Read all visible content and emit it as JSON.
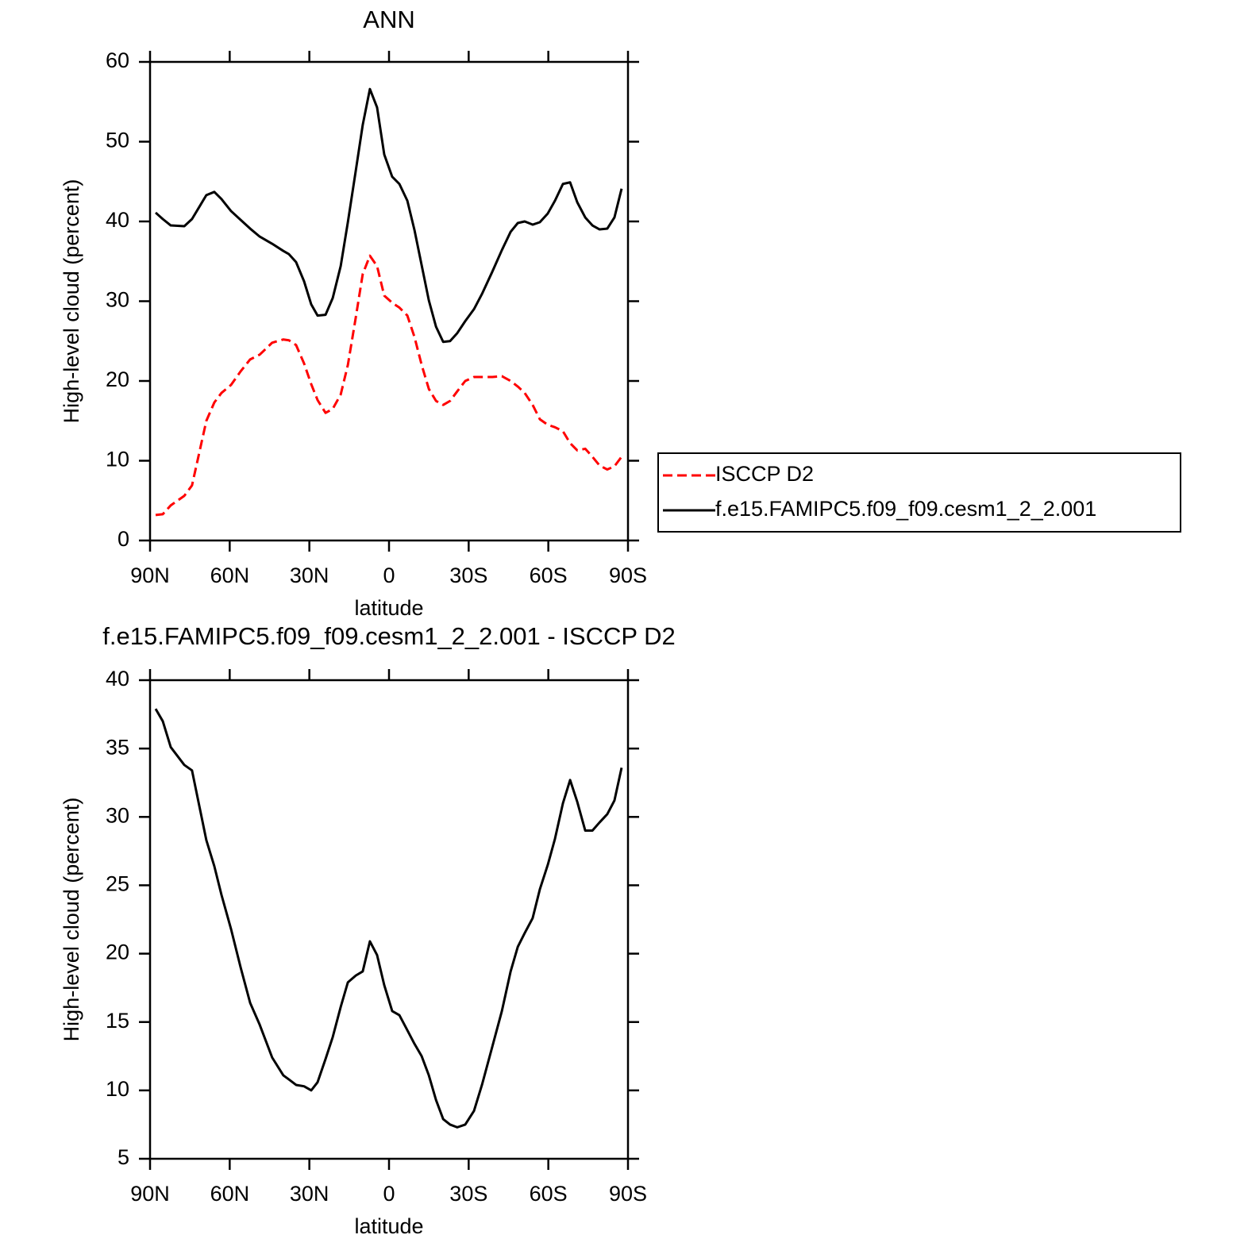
{
  "chart_data": [
    {
      "type": "line",
      "title": "ANN",
      "x_label": "latitude",
      "y_label": "High-level cloud (percent)",
      "xlim": [
        90,
        -90
      ],
      "ylim": [
        0,
        60
      ],
      "xticks": [
        {
          "value": 90,
          "label": "90N"
        },
        {
          "value": 60,
          "label": "60N"
        },
        {
          "value": 30,
          "label": "30N"
        },
        0,
        {
          "value": -30,
          "label": "30S"
        },
        {
          "value": -60,
          "label": "60S"
        },
        {
          "value": -90,
          "label": "90S"
        }
      ],
      "yticks": [
        0,
        10,
        20,
        30,
        40,
        50,
        60
      ],
      "legend": "right",
      "x": [
        87.9,
        85.2,
        82.2,
        77.1,
        74.2,
        68.8,
        65.8,
        63.1,
        59.5,
        55.9,
        52.3,
        48.7,
        44.0,
        39.8,
        37.7,
        35.0,
        32.0,
        29.3,
        26.9,
        23.9,
        21.2,
        18.2,
        15.5,
        12.5,
        9.9,
        7.2,
        4.5,
        1.8,
        -1.2,
        -3.9,
        -6.9,
        -9.6,
        -12.3,
        -15.0,
        -17.7,
        -20.4,
        -23.0,
        -25.7,
        -28.7,
        -32.0,
        -35.0,
        -38.9,
        -42.5,
        -45.8,
        -48.5,
        -51.1,
        -54.1,
        -56.8,
        -59.8,
        -62.5,
        -65.5,
        -68.2,
        -70.9,
        -73.9,
        -76.6,
        -79.3,
        -82.2,
        -84.9,
        -87.6
      ],
      "series": [
        {
          "name": "ISCCP D2",
          "color": "#ff0000",
          "linestyle": "dashed",
          "values": [
            3.2,
            3.3,
            4.4,
            5.6,
            6.9,
            15.0,
            17.3,
            18.5,
            19.5,
            21.2,
            22.7,
            23.3,
            24.8,
            25.2,
            25.1,
            24.5,
            22.2,
            19.6,
            17.6,
            16.0,
            16.5,
            18.3,
            22.0,
            28.0,
            33.4,
            35.7,
            34.4,
            30.7,
            29.8,
            29.2,
            28.2,
            25.5,
            22.0,
            19.0,
            17.5,
            17.0,
            17.5,
            18.7,
            20.0,
            20.5,
            20.5,
            20.5,
            20.6,
            20.0,
            19.3,
            18.5,
            17.0,
            15.2,
            14.5,
            14.2,
            13.7,
            12.2,
            11.3,
            11.5,
            10.5,
            9.4,
            8.9,
            9.3,
            10.5
          ]
        },
        {
          "name": "f.e15.FAMIPC5.f09_f09.cesm1_2_2.001",
          "color": "#000000",
          "linestyle": "solid",
          "values": [
            41.1,
            40.3,
            39.5,
            39.4,
            40.3,
            43.3,
            43.7,
            42.8,
            41.3,
            40.2,
            39.1,
            38.1,
            37.2,
            36.3,
            35.9,
            34.9,
            32.5,
            29.6,
            28.2,
            28.3,
            30.4,
            34.4,
            39.9,
            46.4,
            52.1,
            56.6,
            54.3,
            48.4,
            45.6,
            44.7,
            42.6,
            38.9,
            34.5,
            30.1,
            26.8,
            24.9,
            25.0,
            26.0,
            27.5,
            29.0,
            30.9,
            33.7,
            36.4,
            38.7,
            39.8,
            40.0,
            39.6,
            39.9,
            41.0,
            42.6,
            44.7,
            44.9,
            42.4,
            40.5,
            39.5,
            39.0,
            39.1,
            40.5,
            44.1
          ]
        }
      ]
    },
    {
      "type": "line",
      "title": "f.e15.FAMIPC5.f09_f09.cesm1_2_2.001 - ISCCP D2",
      "x_label": "latitude",
      "y_label": "High-level cloud (percent)",
      "xlim": [
        90,
        -90
      ],
      "ylim": [
        5,
        40
      ],
      "xticks": [
        {
          "value": 90,
          "label": "90N"
        },
        {
          "value": 60,
          "label": "60N"
        },
        {
          "value": 30,
          "label": "30N"
        },
        0,
        {
          "value": -30,
          "label": "30S"
        },
        {
          "value": -60,
          "label": "60S"
        },
        {
          "value": -90,
          "label": "90S"
        }
      ],
      "yticks": [
        5,
        10,
        15,
        20,
        25,
        30,
        35,
        40
      ],
      "x": [
        87.9,
        85.2,
        82.2,
        77.1,
        74.2,
        68.8,
        65.8,
        63.1,
        59.5,
        55.9,
        52.3,
        48.7,
        44.0,
        39.8,
        37.7,
        35.0,
        32.0,
        29.3,
        26.9,
        23.9,
        21.2,
        18.2,
        15.5,
        12.5,
        9.9,
        7.2,
        4.5,
        1.8,
        -1.2,
        -3.9,
        -6.9,
        -9.6,
        -12.3,
        -15.0,
        -17.7,
        -20.4,
        -23.0,
        -25.7,
        -28.7,
        -32.0,
        -35.0,
        -38.9,
        -42.5,
        -45.8,
        -48.5,
        -51.1,
        -54.1,
        -56.8,
        -59.8,
        -62.5,
        -65.5,
        -68.2,
        -70.9,
        -73.9,
        -76.6,
        -79.3,
        -82.2,
        -84.9,
        -87.6
      ],
      "series": [
        {
          "color": "#000000",
          "linestyle": "solid",
          "values": [
            37.9,
            37.0,
            35.1,
            33.8,
            33.4,
            28.3,
            26.4,
            24.3,
            21.8,
            19.0,
            16.4,
            14.8,
            12.4,
            11.1,
            10.8,
            10.4,
            10.3,
            10.0,
            10.6,
            12.3,
            13.9,
            16.1,
            17.9,
            18.4,
            18.7,
            20.9,
            19.9,
            17.7,
            15.8,
            15.5,
            14.4,
            13.4,
            12.5,
            11.1,
            9.3,
            7.9,
            7.5,
            7.3,
            7.5,
            8.5,
            10.4,
            13.2,
            15.8,
            18.7,
            20.5,
            21.5,
            22.6,
            24.7,
            26.5,
            28.4,
            31.0,
            32.7,
            31.1,
            29.0,
            29.0,
            29.6,
            30.2,
            31.2,
            33.6
          ]
        }
      ]
    }
  ]
}
